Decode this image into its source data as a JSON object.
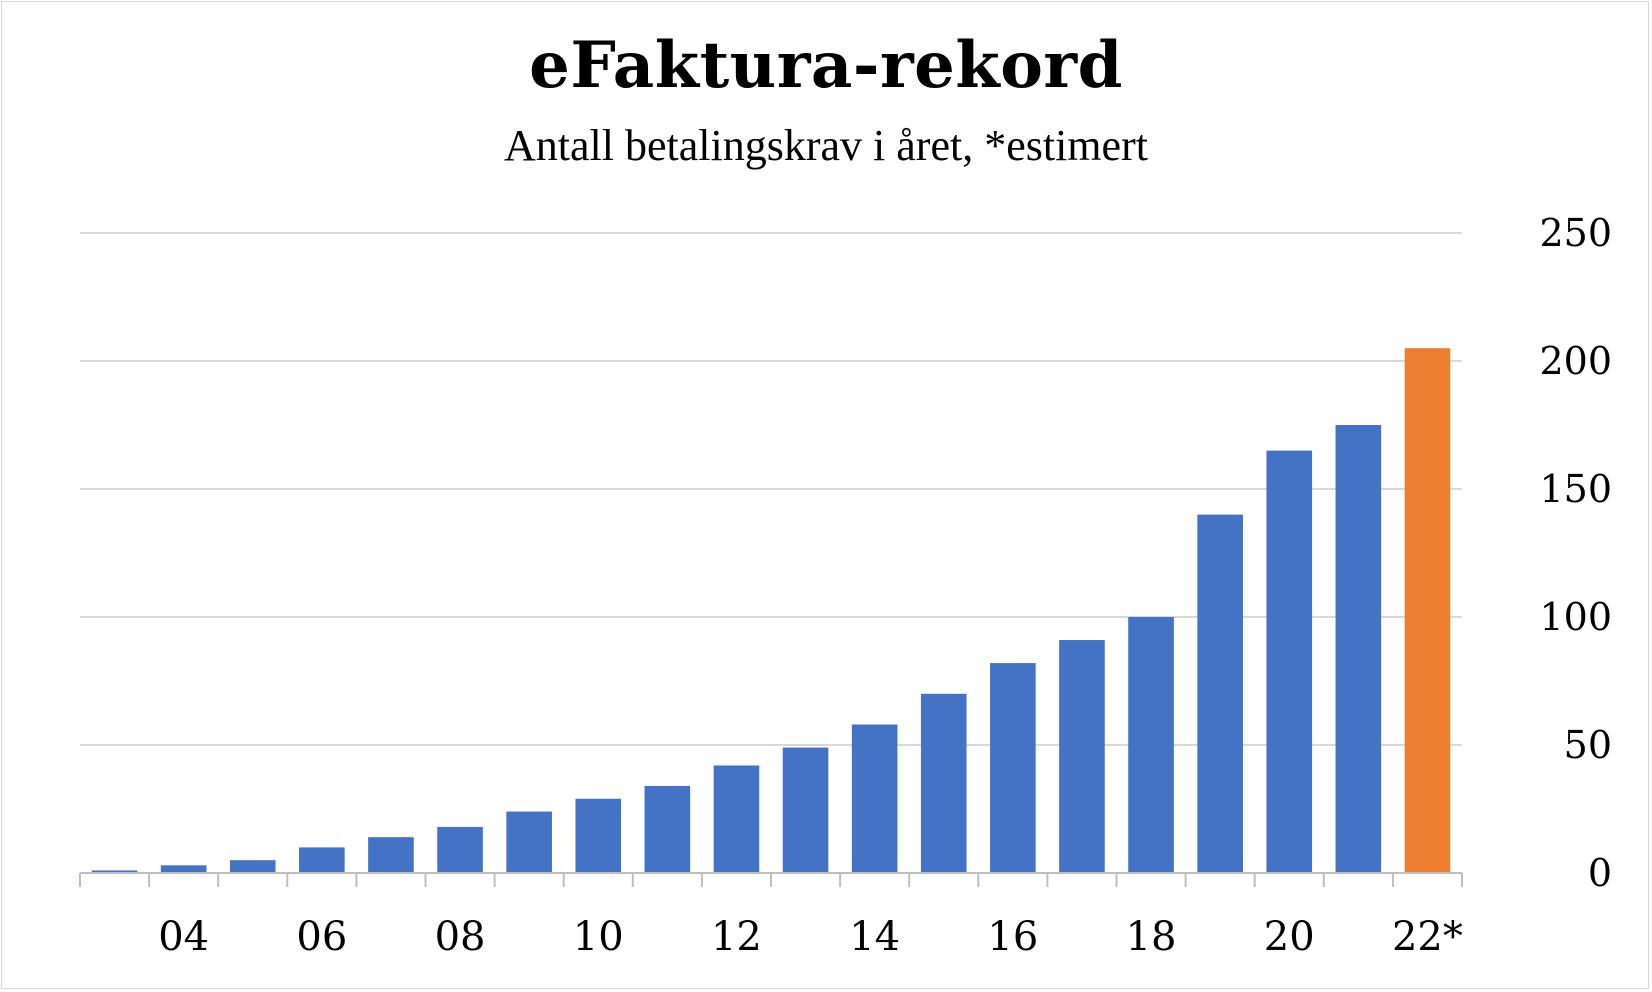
{
  "chart_data": {
    "type": "bar",
    "title": "eFaktura-rekord",
    "subtitle": "Antall betalingskrav i året, *estimert",
    "categories": [
      "",
      "04",
      "",
      "06",
      "",
      "08",
      "",
      "10",
      "",
      "12",
      "",
      "14",
      "",
      "16",
      "",
      "18",
      "",
      "20",
      "",
      "22*"
    ],
    "values": [
      1,
      3,
      5,
      10,
      14,
      18,
      24,
      29,
      34,
      42,
      49,
      58,
      70,
      82,
      91,
      100,
      140,
      165,
      175,
      205
    ],
    "ylim": [
      0,
      250
    ],
    "yticks": [
      "0",
      "50",
      "100",
      "150",
      "200",
      "250"
    ],
    "grid": true,
    "y_axis_side": "right",
    "colors": {
      "actual": "#4472c4",
      "estimate": "#ed7d31",
      "grid": "#d9d9d9",
      "axis": "#bfbfbf"
    },
    "estimate_index": 19
  }
}
